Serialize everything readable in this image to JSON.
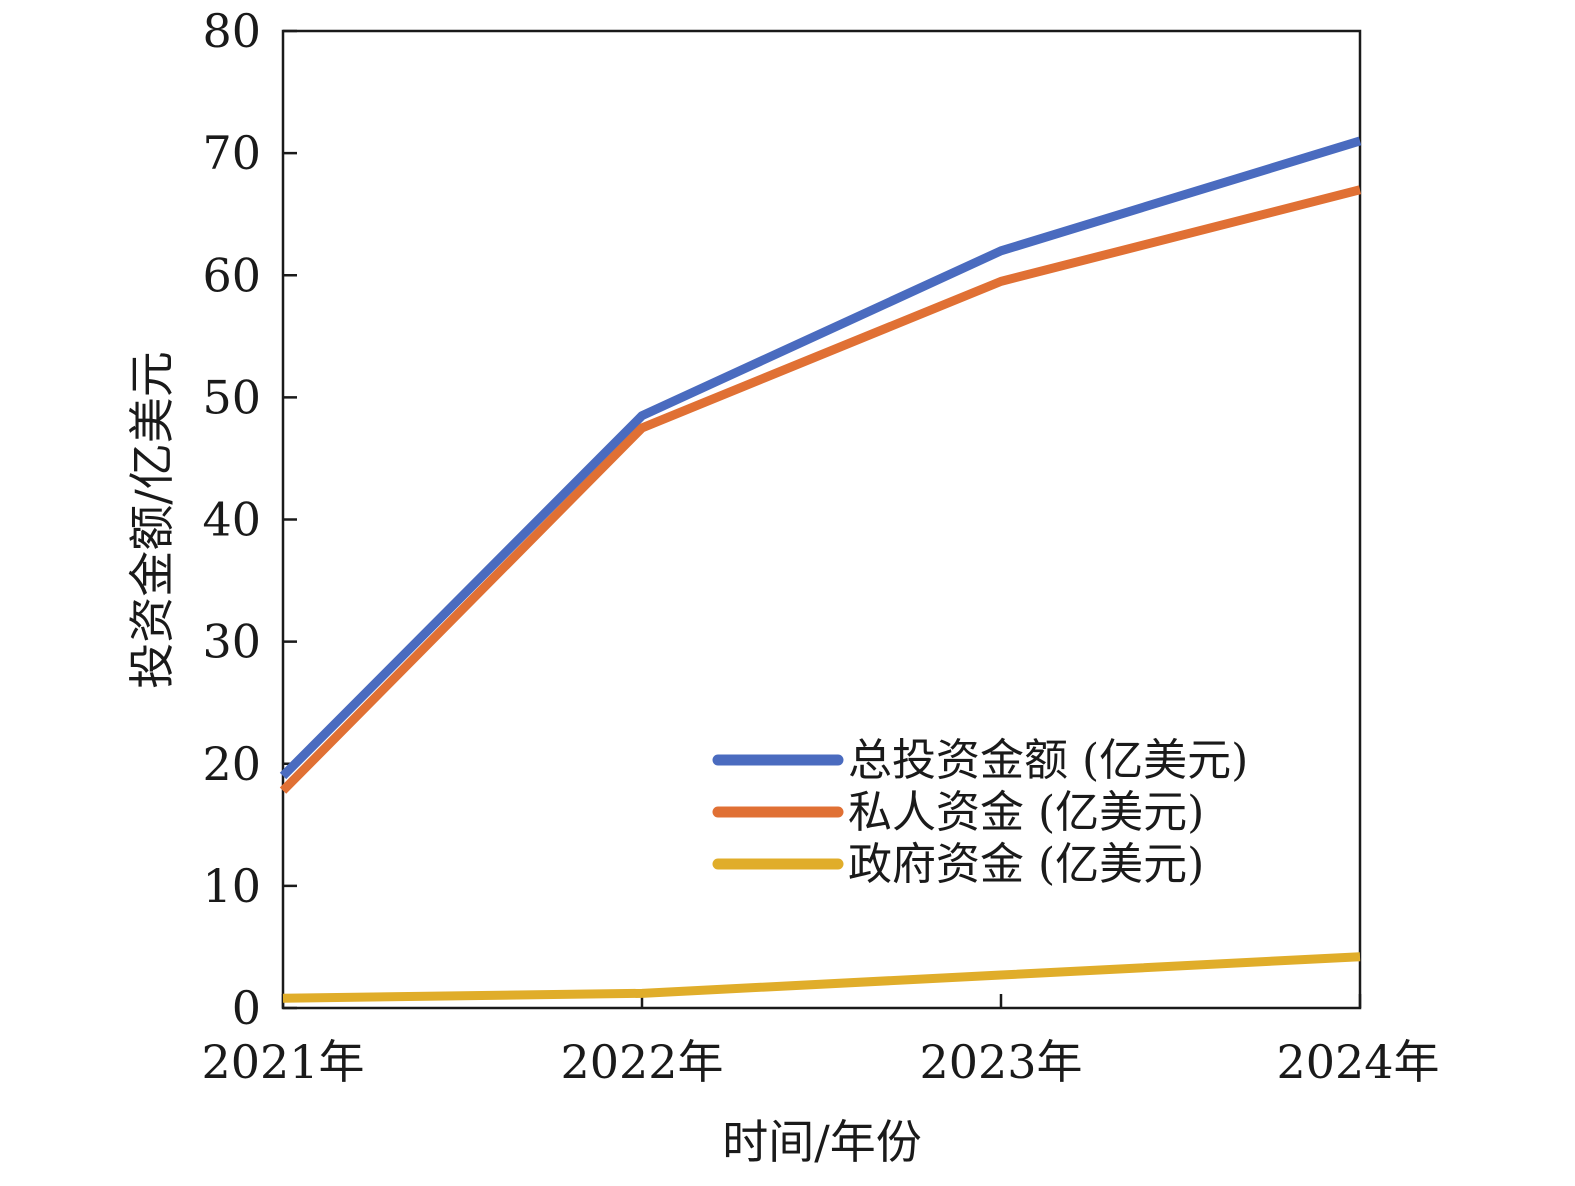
{
  "chart_data": {
    "type": "line",
    "title": "",
    "xlabel": "时间/年份",
    "ylabel": "投资金额/亿美元",
    "categories": [
      "2021年",
      "2022年",
      "2023年",
      "2024年"
    ],
    "ylim": [
      0,
      80
    ],
    "yticks": [
      0,
      10,
      20,
      30,
      40,
      50,
      60,
      70,
      80
    ],
    "grid": false,
    "legend_position": "lower-right",
    "series": [
      {
        "name": "总投资金额 (亿美元)",
        "color": "#4a6bbf",
        "values": [
          19,
          48.5,
          62,
          71
        ]
      },
      {
        "name": "私人资金 (亿美元)",
        "color": "#e07034",
        "values": [
          17.8,
          47.5,
          59.5,
          67
        ]
      },
      {
        "name": "政府资金 (亿美元)",
        "color": "#e0ad2a",
        "values": [
          0.8,
          1.2,
          2.7,
          4.2
        ]
      }
    ]
  }
}
